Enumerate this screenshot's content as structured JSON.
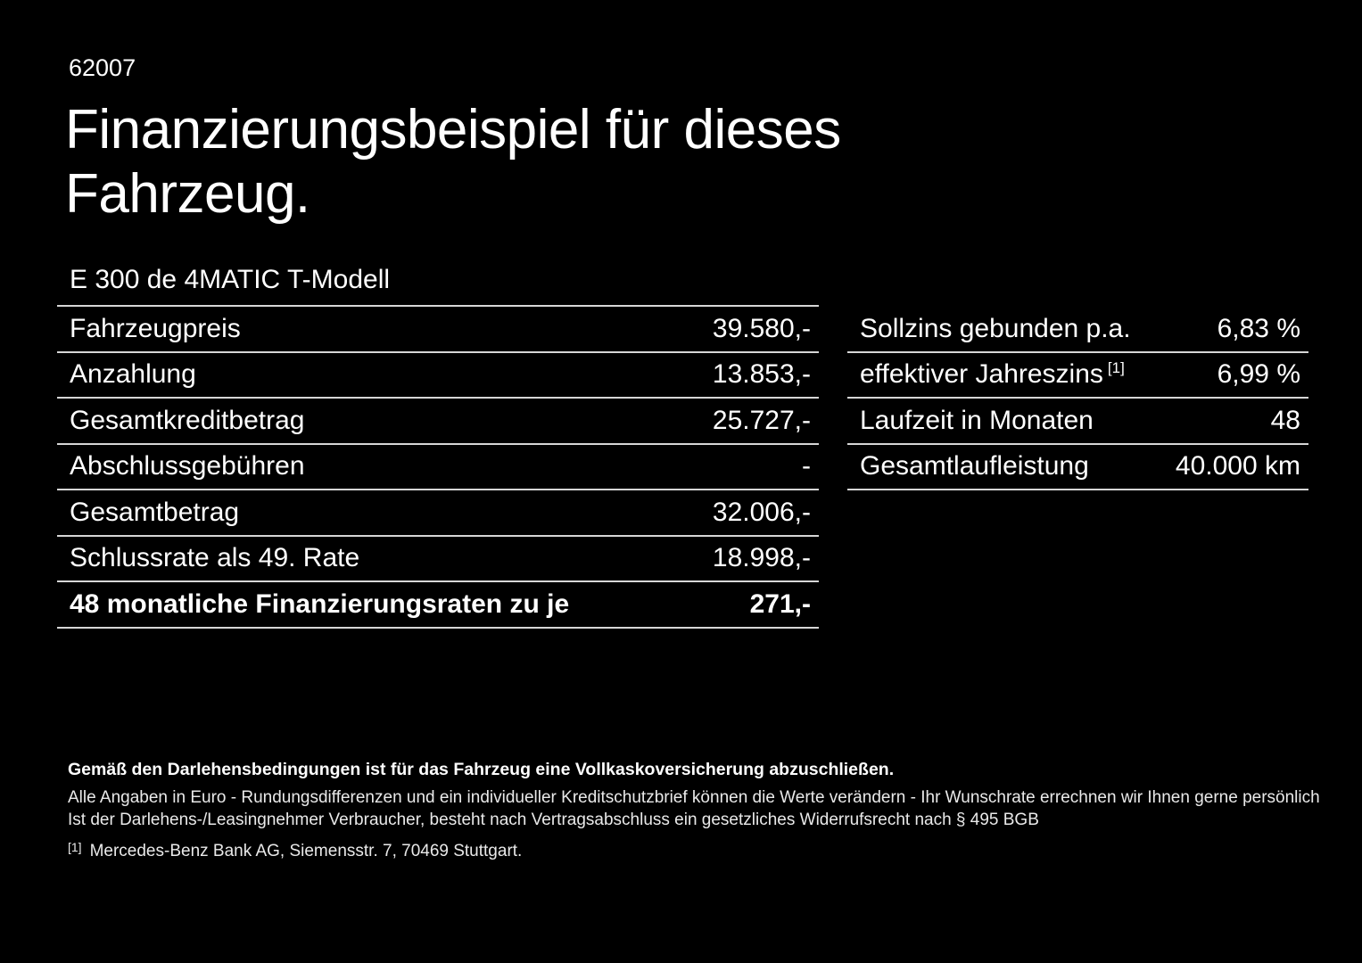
{
  "page": {
    "doc_number": "62007",
    "title_line1": "Finanzierungsbeispiel für dieses",
    "title_line2": "Fahrzeug.",
    "model": "E 300 de 4MATIC T-Modell"
  },
  "left_table": {
    "rows": [
      {
        "label": "Fahrzeugpreis",
        "value": "39.580,-"
      },
      {
        "label": "Anzahlung",
        "value": "13.853,-"
      },
      {
        "label": "Gesamtkreditbetrag",
        "value": "25.727,-"
      },
      {
        "label": "Abschlussgebühren",
        "value": "-"
      },
      {
        "label": "Gesamtbetrag",
        "value": "32.006,-"
      },
      {
        "label": "Schlussrate als 49. Rate",
        "value": "18.998,-"
      },
      {
        "label": "48 monatliche Finanzierungsraten zu je",
        "value": "271,-"
      }
    ]
  },
  "right_table": {
    "rows": [
      {
        "label": "Sollzins gebunden p.a.",
        "value": "6,83 %"
      },
      {
        "label": "effektiver Jahreszins",
        "sup": "[1]",
        "value": "6,99 %"
      },
      {
        "label": "Laufzeit in Monaten",
        "value": "48"
      },
      {
        "label": "Gesamtlaufleistung",
        "value": "40.000 km"
      }
    ]
  },
  "footer": {
    "bold_note": "Gemäß den Darlehensbedingungen ist für das Fahrzeug eine Vollkaskoversicherung abzuschließen.",
    "note_line1": "Alle Angaben in Euro - Rundungsdifferenzen und ein individueller Kreditschutzbrief können die Werte verändern - Ihr Wunschrate errechnen wir Ihnen gerne persönlich",
    "note_line2": "Ist der Darlehens-/Leasingnehmer Verbraucher, besteht nach Vertragsabschluss ein gesetzliches Widerrufsrecht nach § 495 BGB",
    "footnote_marker": "[1]",
    "footnote_text": "Mercedes-Benz Bank AG, Siemensstr. 7, 70469 Stuttgart."
  },
  "colors": {
    "background": "#000000",
    "text": "#ffffff",
    "divider": "#d6d6d6"
  }
}
